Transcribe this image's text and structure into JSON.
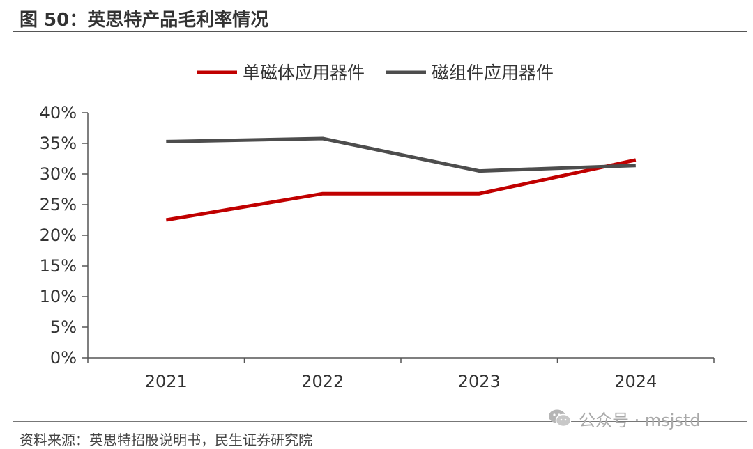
{
  "figure": {
    "title": "图 50：英思特产品毛利率情况",
    "source": "资料来源：英思特招股说明书，民生证券研究院",
    "watermark": "公众号 · msjstd",
    "watermark_icon": "wechat-icon"
  },
  "chart_data": {
    "type": "line",
    "title": "图 50：英思特产品毛利率情况",
    "categories": [
      "2021",
      "2022",
      "2023",
      "2024"
    ],
    "series": [
      {
        "name": "单磁体应用器件",
        "color": "#C00000",
        "values": [
          22.5,
          26.8,
          26.8,
          32.3
        ]
      },
      {
        "name": "磁组件应用器件",
        "color": "#4D4D4D",
        "values": [
          35.3,
          35.8,
          30.5,
          31.4
        ]
      }
    ],
    "y_ticks": [
      "0%",
      "5%",
      "10%",
      "15%",
      "20%",
      "25%",
      "30%",
      "35%",
      "40%"
    ],
    "ylim": [
      0,
      40
    ],
    "xlabel": "",
    "ylabel": "",
    "grid": false,
    "legend_position": "top"
  }
}
